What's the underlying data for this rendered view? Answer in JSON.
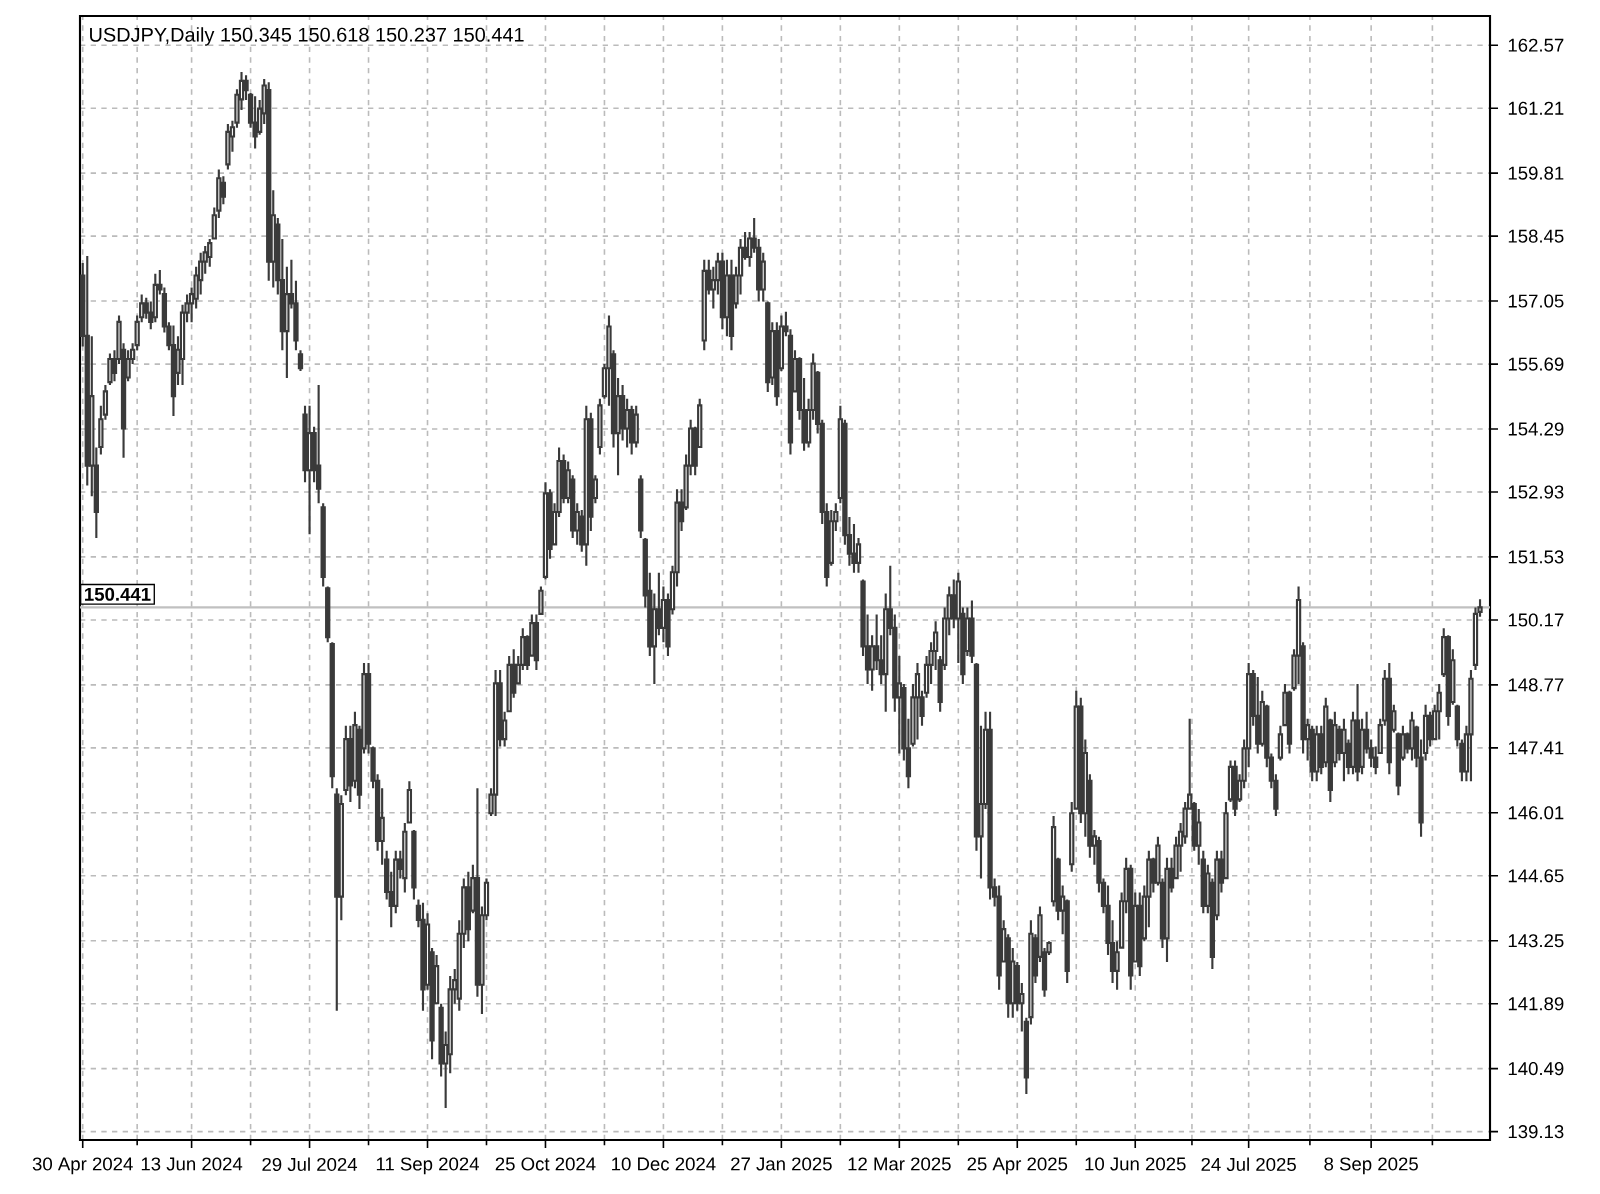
{
  "chart_data": {
    "type": "candlestick",
    "title": "USDJPY,Daily  150.345 150.618 150.237 150.441",
    "color": "#3a3a3a",
    "grid": true,
    "categories": [
      "30 Apr 2024",
      null,
      null,
      null,
      null,
      null,
      null,
      null,
      null,
      null,
      null,
      null,
      null,
      null,
      null,
      null,
      null,
      null,
      null,
      null,
      null,
      null,
      null,
      null,
      "13 Jun 2024",
      null,
      null,
      null,
      null,
      null,
      null,
      null,
      null,
      null,
      null,
      null,
      null,
      null,
      null,
      null,
      null,
      null,
      null,
      null,
      null,
      null,
      null,
      null,
      null,
      null,
      "29 Jul 2024",
      null,
      null,
      null,
      null,
      null,
      null,
      null,
      null,
      null,
      null,
      null,
      null,
      null,
      null,
      null,
      null,
      null,
      null,
      null,
      null,
      null,
      null,
      null,
      null,
      null,
      "11 Sep 2024",
      null,
      null,
      null,
      null,
      null,
      null,
      null,
      null,
      null,
      null,
      null,
      null,
      null,
      null,
      null,
      null,
      null,
      null,
      null,
      null,
      null,
      null,
      null,
      null,
      null,
      "25 Oct 2024",
      null,
      null,
      null,
      null,
      null,
      null,
      null,
      null,
      null,
      null,
      null,
      null,
      null,
      null,
      null,
      null,
      null,
      null,
      null,
      null,
      null,
      null,
      null,
      null,
      null,
      "10 Dec 2024",
      null,
      null,
      null,
      null,
      null,
      null,
      null,
      null,
      null,
      null,
      null,
      null,
      null,
      null,
      null,
      null,
      null,
      null,
      null,
      null,
      null,
      null,
      null,
      null,
      null,
      "27 Jan 2025",
      null,
      null,
      null,
      null,
      null,
      null,
      null,
      null,
      null,
      null,
      null,
      null,
      null,
      null,
      null,
      null,
      null,
      null,
      null,
      null,
      null,
      null,
      null,
      null,
      null,
      "12 Mar 2025",
      null,
      null,
      null,
      null,
      null,
      null,
      null,
      null,
      null,
      null,
      null,
      null,
      null,
      null,
      null,
      null,
      null,
      null,
      null,
      null,
      null,
      null,
      null,
      null,
      null,
      "25 Apr 2025",
      null,
      null,
      null,
      null,
      null,
      null,
      null,
      null,
      null,
      null,
      null,
      null,
      null,
      null,
      null,
      null,
      null,
      null,
      null,
      null,
      null,
      null,
      null,
      null,
      null,
      "10 Jun 2025",
      null,
      null,
      null,
      null,
      null,
      null,
      null,
      null,
      null,
      null,
      null,
      null,
      null,
      null,
      null,
      null,
      null,
      null,
      null,
      null,
      null,
      null,
      null,
      null,
      "24 Jul 2025",
      null,
      null,
      null,
      null,
      null,
      null,
      null,
      null,
      null,
      null,
      null,
      null,
      null,
      null,
      null,
      null,
      null,
      null,
      null,
      null,
      null,
      null,
      null,
      null,
      null,
      null,
      "8 Sep 2025",
      null,
      null,
      null,
      null,
      null,
      null,
      null,
      null,
      null,
      null,
      null,
      null,
      null,
      null,
      null,
      null,
      null,
      null,
      null,
      null,
      null,
      null,
      null,
      null
    ],
    "ylim": [
      138.95,
      163.2
    ],
    "yticks": [
      139.13,
      140.49,
      141.89,
      143.25,
      144.65,
      146.01,
      147.41,
      148.77,
      150.17,
      151.53,
      152.93,
      154.29,
      155.69,
      157.05,
      158.45,
      159.81,
      161.21,
      162.57
    ],
    "ref_lines": [
      {
        "axis": "y",
        "value": 150.441,
        "label": "150.441",
        "color": "#c0c0c0"
      }
    ],
    "ohlc": [
      [
        157.6,
        157.87,
        156.07,
        156.3
      ],
      [
        156.3,
        158.02,
        153.07,
        153.5
      ],
      [
        153.5,
        156.29,
        152.84,
        155.0
      ],
      [
        153.5,
        153.89,
        151.94,
        152.5
      ],
      [
        153.9,
        154.79,
        153.74,
        154.5
      ],
      [
        154.6,
        155.24,
        154.49,
        155.1
      ],
      [
        155.3,
        155.92,
        155.24,
        155.8
      ],
      [
        155.8,
        155.99,
        155.32,
        155.5
      ],
      [
        155.8,
        156.74,
        155.69,
        156.6
      ],
      [
        156.0,
        156.14,
        153.67,
        154.3
      ],
      [
        155.4,
        155.99,
        155.32,
        155.8
      ],
      [
        155.8,
        156.14,
        155.69,
        156.0
      ],
      [
        156.1,
        156.74,
        155.99,
        156.6
      ],
      [
        156.7,
        157.19,
        156.59,
        157.0
      ],
      [
        157.0,
        157.12,
        156.67,
        156.8
      ],
      [
        156.8,
        157.04,
        156.44,
        156.6
      ],
      [
        156.7,
        157.64,
        156.59,
        157.4
      ],
      [
        157.4,
        157.72,
        157.19,
        157.3
      ],
      [
        157.2,
        157.34,
        156.37,
        156.5
      ],
      [
        156.5,
        156.59,
        155.99,
        156.1
      ],
      [
        156.1,
        156.52,
        154.57,
        155.0
      ],
      [
        155.5,
        156.29,
        155.24,
        156.0
      ],
      [
        155.8,
        156.97,
        155.24,
        156.8
      ],
      [
        156.8,
        157.19,
        156.59,
        157.0
      ],
      [
        157.0,
        157.34,
        156.59,
        157.2
      ],
      [
        157.1,
        157.79,
        156.89,
        157.6
      ],
      [
        157.5,
        158.09,
        157.19,
        157.9
      ],
      [
        157.9,
        158.24,
        157.64,
        158.1
      ],
      [
        158.0,
        158.39,
        157.79,
        158.3
      ],
      [
        158.4,
        159.07,
        158.39,
        158.9
      ],
      [
        159.0,
        159.89,
        158.84,
        159.7
      ],
      [
        159.6,
        159.74,
        159.14,
        159.3
      ],
      [
        160.0,
        160.87,
        159.89,
        160.7
      ],
      [
        160.6,
        160.94,
        160.27,
        160.8
      ],
      [
        160.9,
        161.62,
        160.79,
        161.5
      ],
      [
        161.4,
        161.99,
        161.17,
        161.8
      ],
      [
        161.8,
        161.92,
        161.39,
        161.6
      ],
      [
        161.5,
        161.54,
        160.79,
        160.9
      ],
      [
        160.9,
        161.47,
        160.34,
        160.6
      ],
      [
        160.7,
        161.39,
        160.64,
        161.2
      ],
      [
        161.1,
        161.84,
        160.87,
        161.7
      ],
      [
        161.6,
        161.77,
        157.49,
        157.9
      ],
      [
        157.9,
        159.44,
        157.34,
        158.9
      ],
      [
        158.7,
        158.84,
        157.19,
        157.5
      ],
      [
        157.5,
        158.39,
        155.99,
        156.4
      ],
      [
        156.4,
        157.79,
        155.39,
        157.2
      ],
      [
        157.2,
        157.94,
        156.89,
        157.0
      ],
      [
        157.0,
        157.49,
        155.99,
        156.2
      ],
      [
        155.9,
        155.99,
        155.54,
        155.6
      ],
      [
        154.6,
        154.79,
        153.14,
        153.4
      ],
      [
        153.4,
        154.79,
        152.02,
        154.2
      ],
      [
        154.2,
        154.34,
        153.14,
        153.4
      ],
      [
        153.5,
        155.24,
        152.69,
        153.0
      ],
      [
        152.6,
        152.69,
        150.89,
        151.1
      ],
      [
        150.85,
        150.89,
        149.69,
        149.8
      ],
      [
        149.65,
        149.69,
        146.54,
        146.8
      ],
      [
        146.4,
        146.54,
        141.74,
        144.2
      ],
      [
        144.2,
        146.39,
        143.69,
        146.2
      ],
      [
        146.5,
        147.89,
        146.39,
        147.6
      ],
      [
        147.6,
        147.89,
        146.24,
        146.6
      ],
      [
        146.7,
        148.19,
        146.54,
        147.9
      ],
      [
        147.8,
        147.89,
        146.09,
        146.4
      ],
      [
        147.4,
        149.24,
        147.29,
        149.0
      ],
      [
        149.0,
        149.24,
        147.29,
        147.5
      ],
      [
        147.4,
        147.44,
        146.54,
        146.7
      ],
      [
        146.7,
        146.84,
        145.19,
        145.4
      ],
      [
        145.4,
        146.54,
        144.89,
        145.9
      ],
      [
        145.0,
        145.19,
        144.14,
        144.3
      ],
      [
        144.3,
        144.74,
        143.54,
        144.0
      ],
      [
        144.0,
        145.19,
        143.84,
        145.0
      ],
      [
        145.0,
        145.19,
        144.59,
        144.8
      ],
      [
        144.6,
        145.79,
        144.29,
        145.6
      ],
      [
        145.8,
        146.69,
        145.79,
        146.5
      ],
      [
        145.6,
        145.64,
        144.14,
        144.4
      ],
      [
        144.0,
        144.14,
        143.54,
        143.7
      ],
      [
        143.7,
        144.07,
        141.74,
        142.2
      ],
      [
        142.3,
        143.84,
        142.19,
        143.6
      ],
      [
        143.0,
        143.09,
        140.69,
        141.1
      ],
      [
        141.9,
        142.94,
        141.89,
        142.7
      ],
      [
        141.8,
        141.89,
        140.32,
        140.6
      ],
      [
        140.6,
        141.29,
        139.64,
        141.0
      ],
      [
        140.8,
        142.49,
        140.39,
        142.2
      ],
      [
        142.2,
        142.64,
        141.89,
        142.4
      ],
      [
        142.0,
        143.69,
        141.74,
        143.4
      ],
      [
        143.4,
        144.59,
        143.09,
        144.4
      ],
      [
        144.4,
        144.74,
        143.24,
        143.5
      ],
      [
        143.9,
        144.89,
        143.84,
        144.6
      ],
      [
        144.6,
        146.54,
        142.04,
        142.3
      ],
      [
        142.3,
        143.99,
        141.67,
        143.8
      ],
      [
        143.8,
        144.59,
        143.69,
        144.5
      ],
      [
        146.0,
        146.54,
        145.94,
        146.4
      ],
      [
        146.4,
        149.09,
        145.94,
        148.8
      ],
      [
        148.8,
        149.09,
        147.44,
        147.6
      ],
      [
        147.6,
        148.19,
        147.44,
        148.0
      ],
      [
        148.2,
        149.39,
        148.19,
        149.2
      ],
      [
        149.2,
        149.54,
        148.49,
        148.6
      ],
      [
        148.8,
        149.39,
        148.79,
        149.2
      ],
      [
        149.2,
        149.99,
        149.09,
        149.8
      ],
      [
        149.8,
        149.84,
        149.09,
        149.2
      ],
      [
        149.4,
        150.29,
        149.39,
        150.1
      ],
      [
        150.1,
        150.29,
        149.09,
        149.3
      ],
      [
        150.3,
        150.89,
        150.29,
        150.8
      ],
      [
        151.1,
        153.14,
        151.04,
        152.9
      ],
      [
        152.9,
        152.99,
        151.49,
        151.7
      ],
      [
        151.8,
        152.69,
        151.79,
        152.5
      ],
      [
        152.5,
        153.89,
        152.39,
        153.6
      ],
      [
        153.6,
        153.74,
        152.69,
        152.8
      ],
      [
        152.8,
        153.59,
        152.69,
        153.4
      ],
      [
        153.2,
        153.29,
        151.94,
        152.1
      ],
      [
        152.1,
        152.69,
        151.79,
        152.5
      ],
      [
        152.4,
        152.54,
        151.64,
        151.8
      ],
      [
        151.8,
        154.79,
        151.34,
        154.5
      ],
      [
        154.5,
        154.64,
        152.09,
        152.4
      ],
      [
        152.8,
        153.29,
        152.69,
        153.2
      ],
      [
        153.9,
        154.94,
        153.74,
        154.8
      ],
      [
        155.0,
        155.69,
        154.94,
        155.6
      ],
      [
        155.6,
        156.74,
        154.79,
        156.5
      ],
      [
        155.9,
        155.99,
        153.89,
        154.2
      ],
      [
        154.2,
        155.39,
        153.29,
        155.0
      ],
      [
        155.0,
        155.24,
        154.04,
        154.3
      ],
      [
        154.3,
        154.94,
        153.89,
        154.7
      ],
      [
        154.7,
        154.79,
        153.74,
        154.0
      ],
      [
        154.0,
        154.79,
        153.89,
        154.6
      ],
      [
        153.2,
        153.29,
        151.94,
        152.1
      ],
      [
        151.9,
        151.94,
        150.44,
        150.7
      ],
      [
        150.8,
        151.19,
        149.39,
        149.6
      ],
      [
        149.6,
        150.74,
        148.79,
        150.4
      ],
      [
        150.4,
        151.19,
        149.84,
        150.0
      ],
      [
        150.0,
        150.89,
        149.69,
        150.6
      ],
      [
        150.6,
        150.74,
        149.39,
        149.6
      ],
      [
        150.4,
        151.34,
        150.29,
        151.2
      ],
      [
        151.2,
        152.99,
        150.89,
        152.7
      ],
      [
        152.7,
        152.99,
        152.09,
        152.3
      ],
      [
        152.6,
        153.74,
        152.54,
        153.5
      ],
      [
        153.5,
        154.49,
        153.29,
        154.3
      ],
      [
        154.3,
        154.34,
        153.29,
        153.5
      ],
      [
        153.9,
        154.94,
        153.89,
        154.8
      ],
      [
        156.2,
        157.94,
        155.99,
        157.7
      ],
      [
        157.7,
        157.94,
        157.19,
        157.3
      ],
      [
        157.3,
        157.79,
        156.89,
        157.5
      ],
      [
        157.5,
        158.09,
        157.19,
        157.9
      ],
      [
        157.9,
        158.09,
        156.44,
        156.7
      ],
      [
        156.7,
        157.94,
        156.29,
        157.6
      ],
      [
        157.6,
        157.94,
        155.99,
        156.3
      ],
      [
        157.0,
        157.79,
        156.89,
        157.6
      ],
      [
        157.6,
        158.39,
        157.19,
        158.2
      ],
      [
        158.2,
        158.54,
        157.94,
        158.0
      ],
      [
        158.0,
        158.54,
        157.79,
        158.4
      ],
      [
        158.4,
        158.84,
        158.09,
        158.2
      ],
      [
        158.2,
        158.39,
        157.04,
        157.3
      ],
      [
        157.3,
        158.09,
        157.04,
        157.9
      ],
      [
        157.0,
        157.04,
        155.09,
        155.3
      ],
      [
        155.4,
        156.59,
        155.24,
        156.4
      ],
      [
        156.4,
        156.59,
        154.79,
        155.0
      ],
      [
        155.6,
        156.74,
        155.54,
        156.5
      ],
      [
        156.5,
        156.82,
        156.29,
        156.4
      ],
      [
        156.3,
        156.44,
        153.74,
        154.0
      ],
      [
        155.1,
        155.99,
        155.09,
        155.8
      ],
      [
        155.8,
        155.84,
        154.49,
        154.7
      ],
      [
        154.7,
        155.39,
        153.82,
        154.0
      ],
      [
        154.0,
        154.94,
        153.89,
        154.7
      ],
      [
        154.7,
        155.92,
        154.49,
        155.7
      ],
      [
        155.5,
        155.54,
        154.19,
        154.4
      ],
      [
        154.4,
        154.49,
        152.24,
        152.5
      ],
      [
        152.5,
        152.69,
        150.89,
        151.1
      ],
      [
        151.4,
        152.54,
        151.34,
        152.3
      ],
      [
        152.3,
        152.69,
        152.09,
        152.5
      ],
      [
        152.8,
        154.79,
        152.69,
        154.5
      ],
      [
        154.4,
        154.49,
        151.79,
        152.0
      ],
      [
        152.0,
        152.39,
        151.34,
        151.6
      ],
      [
        151.6,
        152.24,
        151.19,
        151.4
      ],
      [
        151.4,
        151.94,
        151.19,
        151.8
      ],
      [
        151.0,
        151.04,
        149.39,
        149.6
      ],
      [
        149.6,
        150.29,
        148.79,
        149.1
      ],
      [
        149.1,
        149.84,
        148.64,
        149.6
      ],
      [
        149.6,
        150.29,
        149.09,
        149.3
      ],
      [
        149.3,
        149.84,
        148.79,
        149.0
      ],
      [
        149.0,
        150.74,
        148.19,
        150.4
      ],
      [
        150.4,
        151.34,
        149.84,
        150.0
      ],
      [
        150.0,
        150.29,
        148.19,
        148.5
      ],
      [
        148.5,
        149.39,
        147.29,
        148.8
      ],
      [
        148.7,
        148.79,
        147.14,
        147.4
      ],
      [
        147.4,
        148.04,
        146.54,
        146.8
      ],
      [
        147.5,
        148.79,
        147.44,
        148.5
      ],
      [
        148.5,
        149.24,
        147.59,
        149.0
      ],
      [
        148.5,
        148.64,
        147.89,
        148.1
      ],
      [
        148.6,
        149.39,
        148.49,
        149.2
      ],
      [
        149.2,
        149.69,
        148.79,
        149.5
      ],
      [
        149.5,
        150.14,
        149.09,
        149.9
      ],
      [
        149.3,
        149.39,
        148.19,
        148.4
      ],
      [
        149.2,
        150.44,
        149.09,
        150.2
      ],
      [
        150.2,
        150.89,
        149.84,
        150.7
      ],
      [
        150.7,
        151.04,
        149.99,
        150.2
      ],
      [
        150.2,
        151.19,
        149.24,
        151.0
      ],
      [
        150.3,
        150.44,
        148.79,
        149.0
      ],
      [
        149.5,
        150.44,
        149.39,
        150.2
      ],
      [
        150.2,
        150.59,
        149.24,
        149.4
      ],
      [
        149.2,
        149.24,
        145.19,
        145.5
      ],
      [
        145.5,
        147.89,
        144.59,
        146.2
      ],
      [
        146.2,
        148.19,
        146.09,
        147.8
      ],
      [
        147.8,
        148.19,
        144.14,
        144.4
      ],
      [
        144.4,
        144.59,
        143.99,
        144.2
      ],
      [
        144.2,
        144.44,
        142.19,
        142.5
      ],
      [
        142.8,
        143.69,
        142.79,
        143.5
      ],
      [
        143.3,
        143.39,
        141.59,
        141.9
      ],
      [
        141.9,
        143.09,
        141.59,
        142.8
      ],
      [
        142.7,
        142.79,
        141.74,
        141.9
      ],
      [
        141.9,
        142.34,
        141.29,
        142.1
      ],
      [
        141.5,
        141.59,
        139.94,
        140.3
      ],
      [
        141.6,
        143.69,
        141.44,
        143.4
      ],
      [
        143.3,
        143.39,
        142.34,
        142.5
      ],
      [
        142.9,
        143.99,
        142.79,
        143.8
      ],
      [
        143.0,
        143.09,
        142.04,
        142.2
      ],
      [
        143.0,
        143.24,
        142.94,
        143.2
      ],
      [
        144.1,
        145.94,
        143.99,
        145.7
      ],
      [
        145.0,
        145.04,
        143.69,
        143.9
      ],
      [
        143.9,
        144.44,
        143.39,
        144.2
      ],
      [
        144.1,
        144.14,
        142.34,
        142.6
      ],
      [
        144.9,
        146.24,
        144.74,
        146.0
      ],
      [
        146.1,
        148.64,
        146.09,
        148.3
      ],
      [
        148.3,
        148.49,
        145.79,
        146.0
      ],
      [
        146.0,
        147.59,
        145.49,
        147.3
      ],
      [
        146.7,
        146.84,
        145.04,
        145.3
      ],
      [
        145.3,
        145.64,
        144.89,
        145.5
      ],
      [
        145.4,
        145.49,
        144.29,
        144.5
      ],
      [
        144.5,
        144.59,
        143.84,
        144.0
      ],
      [
        144.0,
        144.44,
        142.94,
        143.2
      ],
      [
        143.2,
        143.69,
        142.34,
        142.6
      ],
      [
        142.6,
        143.24,
        142.19,
        143.0
      ],
      [
        143.1,
        144.29,
        143.09,
        144.1
      ],
      [
        144.1,
        145.04,
        143.84,
        144.8
      ],
      [
        144.8,
        144.89,
        142.19,
        142.5
      ],
      [
        142.8,
        144.29,
        142.79,
        144.0
      ],
      [
        144.0,
        144.29,
        142.49,
        142.7
      ],
      [
        143.3,
        144.44,
        143.24,
        144.2
      ],
      [
        144.2,
        145.19,
        143.54,
        145.0
      ],
      [
        145.0,
        145.04,
        144.29,
        144.5
      ],
      [
        144.5,
        145.49,
        144.44,
        145.3
      ],
      [
        144.5,
        144.59,
        143.09,
        143.3
      ],
      [
        143.3,
        145.04,
        142.79,
        144.8
      ],
      [
        144.8,
        145.04,
        144.29,
        144.4
      ],
      [
        144.6,
        145.49,
        144.59,
        145.3
      ],
      [
        145.3,
        145.79,
        144.74,
        145.6
      ],
      [
        145.5,
        146.24,
        145.34,
        146.1
      ],
      [
        146.1,
        148.04,
        146.09,
        146.4
      ],
      [
        146.2,
        146.24,
        145.19,
        145.3
      ],
      [
        145.3,
        146.09,
        144.89,
        145.8
      ],
      [
        145.0,
        145.19,
        143.84,
        144.0
      ],
      [
        144.0,
        144.89,
        143.84,
        144.7
      ],
      [
        144.5,
        144.59,
        142.64,
        142.9
      ],
      [
        143.8,
        145.19,
        143.69,
        145.0
      ],
      [
        145.0,
        145.19,
        144.29,
        144.5
      ],
      [
        144.6,
        146.24,
        144.59,
        146.0
      ],
      [
        146.3,
        147.14,
        146.24,
        147.0
      ],
      [
        147.0,
        147.14,
        145.94,
        146.1
      ],
      [
        146.3,
        146.84,
        146.24,
        146.7
      ],
      [
        146.7,
        147.59,
        146.54,
        147.4
      ],
      [
        147.4,
        149.24,
        146.99,
        149.0
      ],
      [
        149.0,
        149.09,
        147.89,
        148.1
      ],
      [
        148.1,
        148.94,
        147.29,
        147.5
      ],
      [
        147.5,
        148.64,
        147.44,
        148.4
      ],
      [
        148.3,
        148.34,
        146.99,
        147.2
      ],
      [
        147.2,
        147.29,
        146.54,
        146.7
      ],
      [
        146.7,
        146.84,
        145.94,
        146.1
      ],
      [
        147.2,
        147.89,
        147.14,
        147.7
      ],
      [
        147.9,
        148.79,
        147.89,
        148.6
      ],
      [
        148.6,
        148.64,
        147.29,
        147.5
      ],
      [
        148.7,
        149.54,
        148.64,
        149.4
      ],
      [
        149.4,
        150.89,
        148.79,
        150.6
      ],
      [
        149.6,
        149.69,
        147.29,
        147.6
      ],
      [
        147.6,
        148.04,
        147.14,
        147.9
      ],
      [
        147.8,
        147.89,
        146.69,
        146.9
      ],
      [
        146.9,
        147.89,
        146.69,
        147.7
      ],
      [
        147.7,
        147.89,
        146.84,
        147.0
      ],
      [
        147.1,
        148.49,
        146.99,
        148.3
      ],
      [
        148.0,
        148.04,
        146.24,
        146.5
      ],
      [
        147.1,
        148.19,
        146.99,
        147.9
      ],
      [
        147.8,
        147.89,
        147.14,
        147.3
      ],
      [
        147.3,
        148.04,
        146.69,
        147.8
      ],
      [
        147.5,
        147.59,
        146.84,
        147.0
      ],
      [
        147.0,
        148.19,
        146.84,
        148.0
      ],
      [
        148.0,
        148.79,
        146.69,
        146.9
      ],
      [
        147.0,
        148.04,
        146.84,
        147.8
      ],
      [
        147.8,
        148.19,
        147.29,
        147.4
      ],
      [
        147.4,
        147.59,
        146.99,
        147.2
      ],
      [
        147.2,
        147.44,
        146.84,
        147.0
      ],
      [
        147.3,
        148.04,
        147.29,
        147.9
      ],
      [
        148.0,
        149.09,
        147.89,
        148.9
      ],
      [
        148.9,
        149.24,
        146.84,
        147.1
      ],
      [
        147.8,
        148.34,
        147.74,
        148.2
      ],
      [
        147.7,
        147.74,
        146.39,
        146.6
      ],
      [
        147.2,
        147.89,
        147.14,
        147.7
      ],
      [
        147.7,
        147.74,
        147.29,
        147.4
      ],
      [
        147.4,
        148.19,
        147.14,
        148.0
      ],
      [
        147.85,
        147.89,
        146.99,
        147.2
      ],
      [
        147.2,
        147.59,
        145.49,
        145.8
      ],
      [
        147.3,
        148.34,
        147.14,
        148.1
      ],
      [
        148.1,
        148.19,
        147.44,
        147.6
      ],
      [
        147.6,
        148.34,
        147.59,
        148.2
      ],
      [
        148.2,
        148.79,
        147.59,
        148.6
      ],
      [
        149.0,
        149.99,
        148.94,
        149.8
      ],
      [
        149.8,
        149.84,
        147.89,
        148.1
      ],
      [
        148.4,
        149.54,
        148.34,
        149.3
      ],
      [
        148.3,
        148.34,
        147.44,
        147.6
      ],
      [
        147.5,
        147.59,
        146.69,
        146.9
      ],
      [
        146.9,
        147.89,
        146.69,
        147.7
      ],
      [
        147.7,
        149.09,
        146.69,
        148.9
      ],
      [
        149.2,
        150.44,
        149.09,
        150.3
      ],
      [
        150.345,
        150.618,
        150.237,
        150.441
      ]
    ]
  }
}
